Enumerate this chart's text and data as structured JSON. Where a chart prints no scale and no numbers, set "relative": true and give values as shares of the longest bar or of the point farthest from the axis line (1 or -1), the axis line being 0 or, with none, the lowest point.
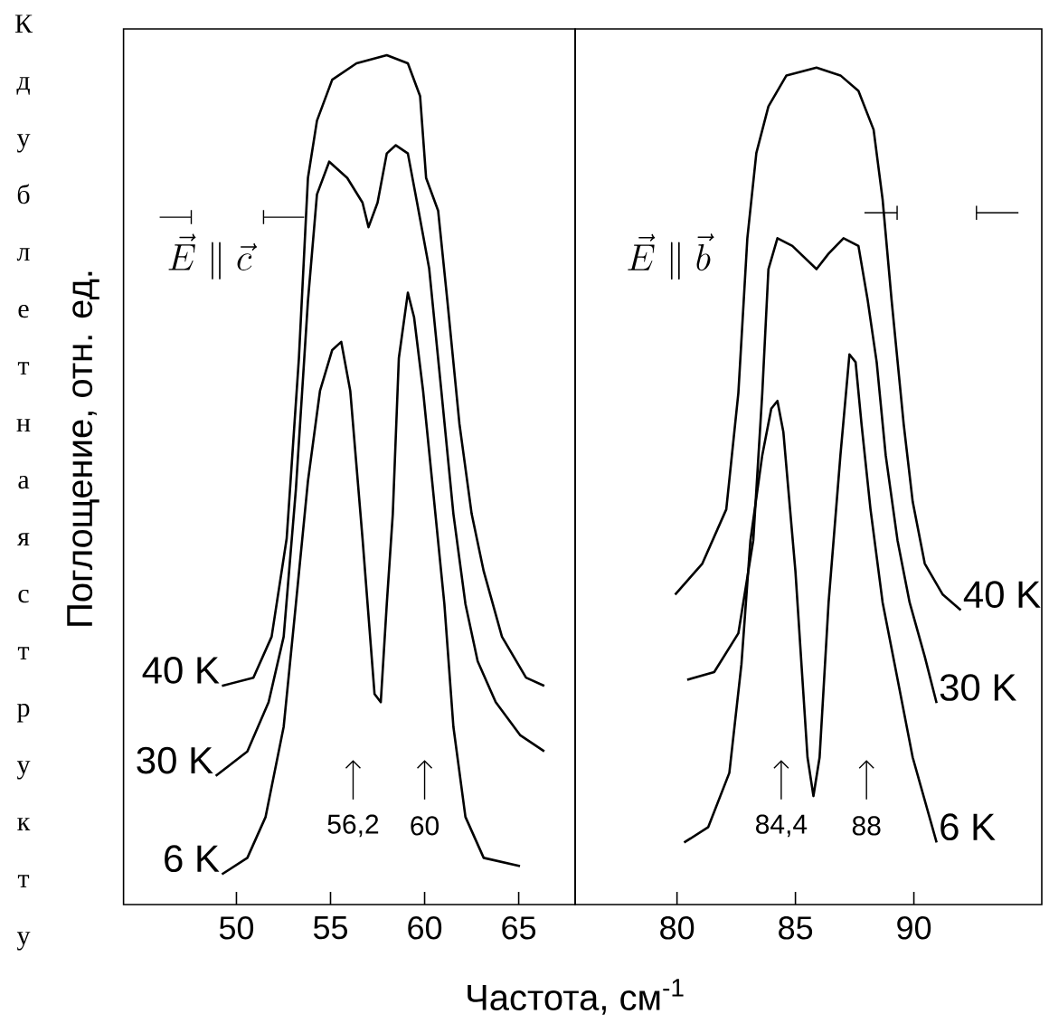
{
  "chart_data": [
    {
      "type": "line",
      "relative": true,
      "xlim": [
        44,
        68
      ],
      "xticks": [
        50,
        55,
        60,
        65
      ],
      "ylabel": "Поглощение, отн. ед.",
      "xlabel": "Частота, см$^{-1}$",
      "marker": "none",
      "line_style": "solid",
      "grid": false,
      "annotations": [
        "\\vec{E}\\parallel\\vec{c}",
        {
          "text": "56,2",
          "x": 56.2
        },
        {
          "text": "60",
          "x": 60
        },
        "Кдублетнаяструкту"
      ],
      "series": [
        {
          "name": "40 K",
          "color": "#000000",
          "x": [
            49.23,
            50.9,
            51.87,
            52.67,
            53.32,
            53.8,
            54.28,
            55.09,
            56.38,
            57.99,
            59.11,
            59.76,
            60.08,
            60.72,
            61.21,
            61.85,
            62.5,
            63.14,
            64.11,
            65.39,
            66.36
          ],
          "values": [
            0.23,
            0.24,
            0.29,
            0.41,
            0.63,
            0.85,
            0.92,
            0.97,
            0.99,
            1.0,
            0.99,
            0.95,
            0.85,
            0.81,
            0.7,
            0.55,
            0.44,
            0.37,
            0.29,
            0.24,
            0.23
          ]
        },
        {
          "name": "30 K",
          "color": "#000000",
          "x": [
            48.9,
            50.58,
            51.71,
            52.51,
            53.16,
            53.8,
            54.28,
            54.93,
            55.89,
            56.7,
            57.02,
            57.5,
            57.99,
            58.47,
            59.11,
            59.6,
            60.24,
            60.89,
            61.53,
            62.17,
            62.82,
            63.78,
            65.07,
            66.36
          ],
          "values": [
            0.12,
            0.15,
            0.21,
            0.29,
            0.47,
            0.7,
            0.83,
            0.87,
            0.85,
            0.82,
            0.79,
            0.82,
            0.88,
            0.89,
            0.88,
            0.82,
            0.74,
            0.59,
            0.44,
            0.33,
            0.26,
            0.21,
            0.17,
            0.15
          ]
        },
        {
          "name": "6 K",
          "color": "#000000",
          "x": [
            49.23,
            50.58,
            51.55,
            52.51,
            53.16,
            53.8,
            54.44,
            55.09,
            55.57,
            56.05,
            56.7,
            57.34,
            57.67,
            57.99,
            58.31,
            58.63,
            59.11,
            59.44,
            59.92,
            60.4,
            61.05,
            61.53,
            62.17,
            63.14,
            65.07
          ],
          "values": [
            0,
            0.02,
            0.07,
            0.18,
            0.33,
            0.48,
            0.59,
            0.64,
            0.65,
            0.59,
            0.41,
            0.22,
            0.21,
            0.33,
            0.44,
            0.63,
            0.71,
            0.68,
            0.59,
            0.48,
            0.33,
            0.18,
            0.07,
            0.02,
            0.01
          ]
        }
      ]
    },
    {
      "type": "line",
      "relative": true,
      "xlim": [
        75.7,
        95.4
      ],
      "xticks": [
        80,
        85,
        90
      ],
      "marker": "none",
      "line_style": "solid",
      "grid": false,
      "annotations": [
        "\\vec{E}\\parallel\\vec{b}",
        {
          "text": "84,4",
          "x": 84.4
        },
        {
          "text": "88",
          "x": 88
        }
      ],
      "series": [
        {
          "name": "40 K",
          "color": "#000000",
          "x": [
            79.92,
            81.07,
            82.08,
            82.59,
            82.97,
            83.35,
            83.86,
            84.62,
            85.89,
            86.9,
            87.66,
            88.3,
            88.68,
            89.06,
            89.57,
            89.95,
            90.46,
            91.22,
            91.98
          ],
          "values": [
            0.32,
            0.36,
            0.43,
            0.58,
            0.78,
            0.89,
            0.95,
            0.99,
            1.0,
            0.99,
            0.97,
            0.92,
            0.83,
            0.7,
            0.54,
            0.44,
            0.36,
            0.32,
            0.3
          ]
        },
        {
          "name": "30 K",
          "color": "#000000",
          "x": [
            80.43,
            81.57,
            82.59,
            83.22,
            83.6,
            83.86,
            84.24,
            84.87,
            85.89,
            86.4,
            87.03,
            87.66,
            88.05,
            88.43,
            88.81,
            89.31,
            89.82,
            90.46,
            90.96
          ],
          "values": [
            0.21,
            0.22,
            0.27,
            0.39,
            0.58,
            0.74,
            0.78,
            0.77,
            0.74,
            0.76,
            0.78,
            0.77,
            0.7,
            0.62,
            0.5,
            0.39,
            0.31,
            0.24,
            0.18
          ]
        },
        {
          "name": "6 K",
          "color": "#000000",
          "x": [
            80.3,
            81.32,
            82.21,
            82.72,
            83.1,
            83.6,
            83.98,
            84.24,
            84.49,
            85.0,
            85.51,
            85.76,
            86.02,
            86.4,
            86.9,
            87.28,
            87.54,
            87.79,
            88.17,
            88.68,
            89.19,
            89.95,
            90.96
          ],
          "values": [
            0,
            0.02,
            0.09,
            0.23,
            0.39,
            0.5,
            0.56,
            0.57,
            0.53,
            0.35,
            0.11,
            0.06,
            0.11,
            0.31,
            0.5,
            0.63,
            0.62,
            0.54,
            0.43,
            0.31,
            0.23,
            0.11,
            0.0
          ]
        }
      ]
    }
  ]
}
